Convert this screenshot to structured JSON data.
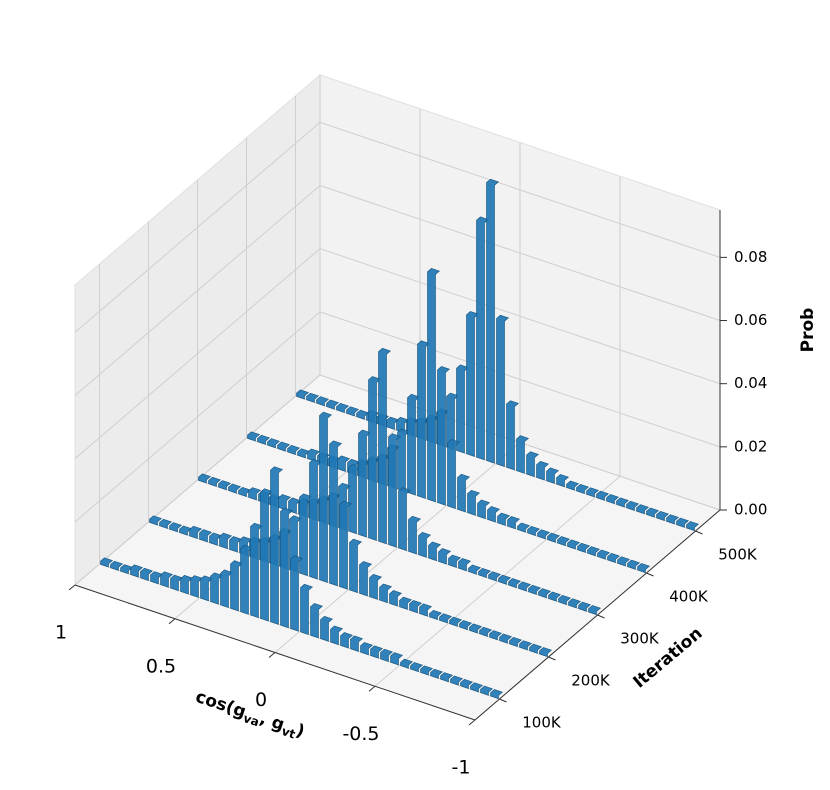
{
  "chart_data": {
    "type": "bar3d",
    "x_label": [
      "cos(g",
      "va",
      ", g",
      "vt",
      ")"
    ],
    "y_label": "Iteration",
    "z_label": "Prob",
    "color": "#1f77b4",
    "edge_color": "#17557f",
    "x": [
      0.975,
      0.925,
      0.875,
      0.825,
      0.775,
      0.725,
      0.675,
      0.625,
      0.575,
      0.525,
      0.475,
      0.425,
      0.375,
      0.325,
      0.275,
      0.225,
      0.175,
      0.125,
      0.075,
      0.025,
      -0.025,
      -0.075,
      -0.125,
      -0.175,
      -0.225,
      -0.275,
      -0.325,
      -0.375,
      -0.425,
      -0.475,
      -0.525,
      -0.575,
      -0.625,
      -0.675,
      -0.725,
      -0.775,
      -0.825,
      -0.875,
      -0.925,
      -0.975
    ],
    "xlim": [
      1,
      -1
    ],
    "xticks": [
      1,
      0.5,
      0,
      -0.5,
      -1
    ],
    "ylim": [
      50000,
      550000
    ],
    "yticks": [
      {
        "value": 100000,
        "label": "100K"
      },
      {
        "value": 200000,
        "label": "200K"
      },
      {
        "value": 300000,
        "label": "300K"
      },
      {
        "value": 400000,
        "label": "400K"
      },
      {
        "value": 500000,
        "label": "500K"
      }
    ],
    "zlim": [
      0,
      0.095
    ],
    "zticks": [
      {
        "value": 0,
        "label": "0.00"
      },
      {
        "value": 0.02,
        "label": "0.02"
      },
      {
        "value": 0.04,
        "label": "0.04"
      },
      {
        "value": 0.06,
        "label": "0.06"
      },
      {
        "value": 0.08,
        "label": "0.08"
      }
    ],
    "grid": true,
    "series": [
      {
        "y": 100000,
        "values": [
          0.001,
          0.001,
          0.001,
          0.002,
          0.002,
          0.002,
          0.003,
          0.003,
          0.004,
          0.005,
          0.006,
          0.008,
          0.01,
          0.014,
          0.02,
          0.028,
          0.04,
          0.048,
          0.036,
          0.022,
          0.014,
          0.009,
          0.006,
          0.004,
          0.003,
          0.003,
          0.002,
          0.002,
          0.002,
          0.002,
          0.001,
          0.001,
          0.001,
          0.001,
          0.001,
          0.001,
          0.001,
          0.001,
          0.001,
          0.001
        ]
      },
      {
        "y": 200000,
        "values": [
          0.001,
          0.001,
          0.001,
          0.001,
          0.002,
          0.002,
          0.002,
          0.003,
          0.003,
          0.004,
          0.005,
          0.006,
          0.008,
          0.011,
          0.016,
          0.024,
          0.036,
          0.052,
          0.044,
          0.026,
          0.015,
          0.009,
          0.006,
          0.004,
          0.003,
          0.002,
          0.002,
          0.002,
          0.001,
          0.001,
          0.001,
          0.001,
          0.001,
          0.001,
          0.001,
          0.001,
          0.001,
          0.001,
          0.001,
          0.001
        ]
      },
      {
        "y": 300000,
        "values": [
          0.001,
          0.001,
          0.001,
          0.001,
          0.001,
          0.002,
          0.002,
          0.002,
          0.003,
          0.003,
          0.004,
          0.005,
          0.007,
          0.009,
          0.013,
          0.02,
          0.032,
          0.05,
          0.06,
          0.034,
          0.018,
          0.01,
          0.006,
          0.004,
          0.003,
          0.002,
          0.002,
          0.001,
          0.001,
          0.001,
          0.001,
          0.001,
          0.001,
          0.001,
          0.001,
          0.001,
          0.001,
          0.001,
          0.001,
          0.001
        ]
      },
      {
        "y": 400000,
        "values": [
          0.001,
          0.001,
          0.001,
          0.001,
          0.001,
          0.001,
          0.002,
          0.002,
          0.002,
          0.003,
          0.003,
          0.004,
          0.006,
          0.008,
          0.012,
          0.018,
          0.03,
          0.048,
          0.072,
          0.042,
          0.02,
          0.01,
          0.006,
          0.004,
          0.003,
          0.002,
          0.002,
          0.001,
          0.001,
          0.001,
          0.001,
          0.001,
          0.001,
          0.001,
          0.001,
          0.001,
          0.001,
          0.001,
          0.001,
          0.001
        ]
      },
      {
        "y": 500000,
        "values": [
          0.001,
          0.001,
          0.001,
          0.001,
          0.001,
          0.001,
          0.001,
          0.002,
          0.002,
          0.002,
          0.003,
          0.004,
          0.005,
          0.007,
          0.01,
          0.016,
          0.026,
          0.044,
          0.075,
          0.088,
          0.046,
          0.02,
          0.01,
          0.006,
          0.004,
          0.003,
          0.002,
          0.001,
          0.001,
          0.001,
          0.001,
          0.001,
          0.001,
          0.001,
          0.001,
          0.001,
          0.001,
          0.001,
          0.001,
          0.001
        ]
      }
    ]
  }
}
